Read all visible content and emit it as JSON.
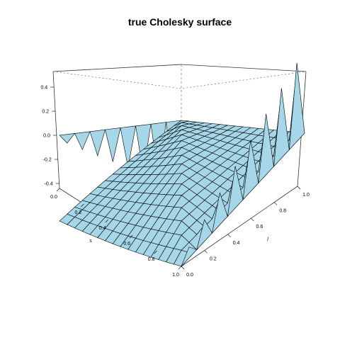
{
  "chart_data": {
    "type": "surface",
    "title": "true Cholesky surface",
    "xlabel": "s",
    "ylabel": "l",
    "zlabel": "",
    "xlim": [
      0,
      1
    ],
    "ylim": [
      0,
      1
    ],
    "zlim": [
      -0.5,
      0.5
    ],
    "x_ticks": [
      "0.0",
      "0.2",
      "0.4",
      "0.6",
      "0.8",
      "1.0"
    ],
    "y_ticks": [
      "0.0",
      "0.2",
      "0.4",
      "0.6",
      "0.8",
      "1.0"
    ],
    "z_ticks": [
      "-0.4",
      "-0.2",
      "0.0",
      "0.2",
      "0.4"
    ],
    "grid_size": 16,
    "surface": "z = 0 where l <= s; for l > s z = (l - s) * (0.5 - |l - 0.5|), a ridge alternating sign between grid columns (zig-zag) near s = 0 and l = 1",
    "fill_color": "#a6d7e8",
    "edge_color": "#000000"
  }
}
